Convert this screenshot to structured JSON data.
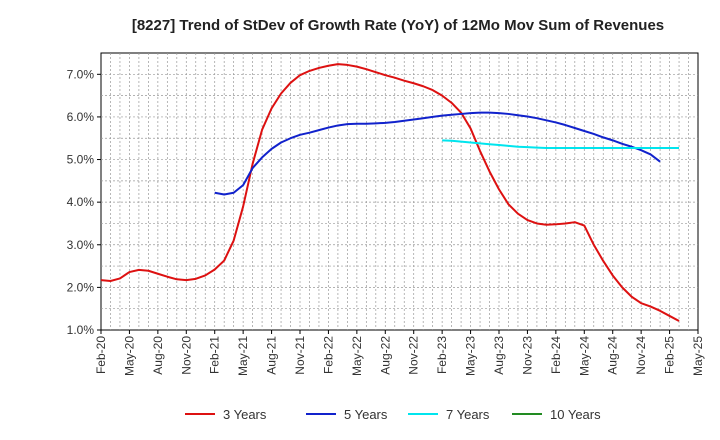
{
  "chart_data": {
    "type": "line",
    "title": "[8227]  Trend of StDev of Growth Rate (YoY) of 12Mo Mov Sum of Revenues",
    "xlabel": "",
    "ylabel": "",
    "ylim": [
      1.0,
      7.5
    ],
    "y_ticks": [
      1.0,
      2.0,
      3.0,
      4.0,
      5.0,
      6.0,
      7.0
    ],
    "y_tick_labels": [
      "1.0%",
      "2.0%",
      "3.0%",
      "4.0%",
      "5.0%",
      "6.0%",
      "7.0%"
    ],
    "x_tick_labels": [
      "Feb-20",
      "May-20",
      "Aug-20",
      "Nov-20",
      "Feb-21",
      "May-21",
      "Aug-21",
      "Nov-21",
      "Feb-22",
      "May-22",
      "Aug-22",
      "Nov-22",
      "Feb-23",
      "May-23",
      "Aug-23",
      "Nov-23",
      "Feb-24",
      "May-24",
      "Aug-24",
      "Nov-24",
      "Feb-25",
      "May-25"
    ],
    "x_start": "Feb-20",
    "x_end": "May-25",
    "grid": true,
    "legend_position": "bottom",
    "series": [
      {
        "name": "3 Years",
        "color": "#dd1111",
        "start_month": 0,
        "values": [
          2.17,
          2.15,
          2.21,
          2.36,
          2.41,
          2.39,
          2.32,
          2.25,
          2.19,
          2.17,
          2.2,
          2.28,
          2.42,
          2.63,
          3.1,
          3.9,
          4.9,
          5.7,
          6.2,
          6.55,
          6.8,
          6.98,
          7.08,
          7.15,
          7.2,
          7.24,
          7.22,
          7.18,
          7.12,
          7.05,
          6.98,
          6.92,
          6.85,
          6.79,
          6.72,
          6.63,
          6.5,
          6.33,
          6.1,
          5.73,
          5.2,
          4.72,
          4.3,
          3.95,
          3.73,
          3.58,
          3.5,
          3.47,
          3.48,
          3.5,
          3.53,
          3.45,
          3.0,
          2.62,
          2.28,
          2.0,
          1.78,
          1.63,
          1.55,
          1.45,
          1.33,
          1.21
        ]
      },
      {
        "name": "5 Years",
        "color": "#1122cc",
        "start_month": 12,
        "values": [
          4.22,
          4.18,
          4.22,
          4.4,
          4.8,
          5.05,
          5.25,
          5.4,
          5.5,
          5.58,
          5.63,
          5.69,
          5.75,
          5.8,
          5.83,
          5.84,
          5.84,
          5.85,
          5.86,
          5.88,
          5.91,
          5.94,
          5.97,
          6.0,
          6.03,
          6.05,
          6.07,
          6.09,
          6.1,
          6.1,
          6.09,
          6.07,
          6.04,
          6.01,
          5.97,
          5.92,
          5.87,
          5.81,
          5.74,
          5.67,
          5.6,
          5.52,
          5.45,
          5.37,
          5.3,
          5.22,
          5.12,
          4.95
        ]
      },
      {
        "name": "7 Years",
        "color": "#00e5ee",
        "start_month": 36,
        "values": [
          5.45,
          5.44,
          5.42,
          5.4,
          5.38,
          5.36,
          5.34,
          5.32,
          5.3,
          5.29,
          5.28,
          5.27,
          5.27,
          5.27,
          5.27,
          5.27,
          5.27,
          5.27,
          5.27,
          5.27,
          5.27,
          5.27,
          5.27,
          5.27,
          5.27,
          5.27
        ]
      },
      {
        "name": "10 Years",
        "color": "#228b22",
        "start_month": 0,
        "values": []
      }
    ]
  }
}
